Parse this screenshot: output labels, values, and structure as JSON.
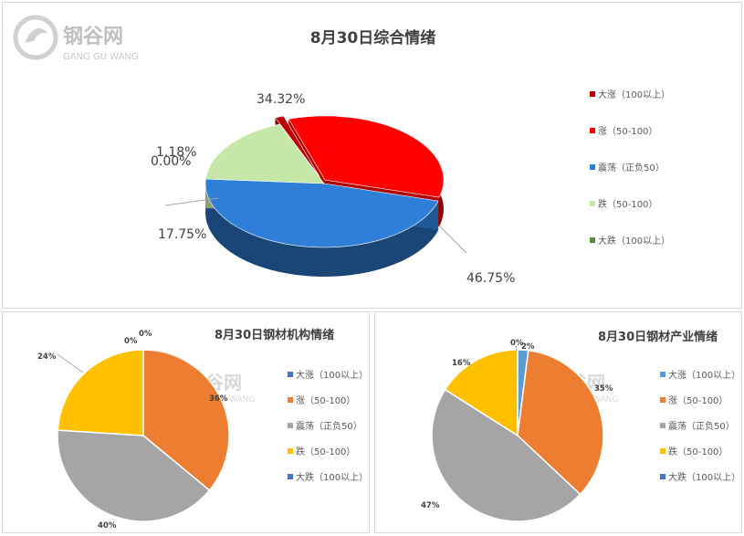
{
  "watermark": {
    "name": "钢谷网",
    "sub": "GANG GU WANG"
  },
  "chart_data": [
    {
      "type": "pie",
      "title": "8月30日综合情绪",
      "categories": [
        "大涨（100以上）",
        "涨（50-100）",
        "震荡（正负50）",
        "跌（50-100）",
        "大跌（100以上）"
      ],
      "values": [
        1.18,
        34.32,
        46.75,
        17.75,
        0.0
      ],
      "labels": [
        "1.18%",
        "34.32%",
        "46.75%",
        "17.75%",
        "0.00%"
      ],
      "colors": [
        "#c00000",
        "#ff0000",
        "#2f7ed8",
        "#c5e8a9",
        "#5a8a3a"
      ],
      "legend": "right"
    },
    {
      "type": "pie",
      "title": "8月30日钢材机构情绪",
      "categories": [
        "大涨（100以上）",
        "涨（50-100）",
        "震荡（正负50）",
        "跌（50-100）",
        "大跌（100以上）"
      ],
      "values": [
        0,
        36,
        40,
        24,
        0
      ],
      "labels": [
        "0%",
        "36%",
        "40%",
        "24%",
        "0%"
      ],
      "colors": [
        "#4472c4",
        "#ed7d31",
        "#a5a5a5",
        "#ffc000",
        "#4472c4"
      ],
      "legend": "right"
    },
    {
      "type": "pie",
      "title": "8月30日钢材产业情绪",
      "categories": [
        "大涨（100以上）",
        "涨（50-100）",
        "震荡（正负50）",
        "跌（50-100）",
        "大跌（100以上）"
      ],
      "values": [
        2,
        35,
        47,
        16,
        0
      ],
      "labels": [
        "2%",
        "35%",
        "47%",
        "16%",
        "0%"
      ],
      "colors": [
        "#5b9bd5",
        "#ed7d31",
        "#a5a5a5",
        "#ffc000",
        "#4472c4"
      ],
      "legend": "right"
    }
  ]
}
